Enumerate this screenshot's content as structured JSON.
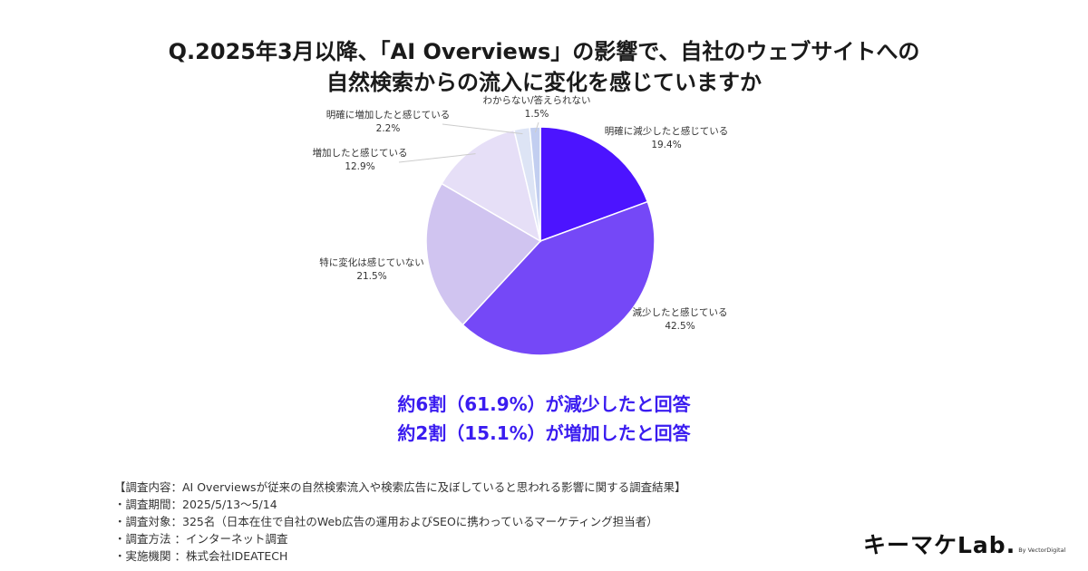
{
  "title": {
    "line1": "Q.2025年3月以降、「AI Overviews」の影響で、自社のウェブサイトへの",
    "line2": "自然検索からの流入に変化を感じていますか"
  },
  "chart_data": {
    "type": "pie",
    "slices": [
      {
        "label": "明確に減少したと感じている",
        "value": 19.4,
        "value_label": "19.4%",
        "color": "#4c14ff"
      },
      {
        "label": "減少したと感じている",
        "value": 42.5,
        "value_label": "42.5%",
        "color": "#7548f7"
      },
      {
        "label": "特に変化は感じていない",
        "value": 21.5,
        "value_label": "21.5%",
        "color": "#d0c4f0"
      },
      {
        "label": "増加したと感じている",
        "value": 12.9,
        "value_label": "12.9%",
        "color": "#e6dff7"
      },
      {
        "label": "明確に増加したと感じている",
        "value": 2.2,
        "value_label": "2.2%",
        "color": "#dde4f5"
      },
      {
        "label": "わからない/答えられない",
        "value": 1.5,
        "value_label": "1.5%",
        "color": "#c2cef0"
      }
    ],
    "start": "top",
    "direction": "clockwise",
    "legend": "none"
  },
  "summary": {
    "line1": "約6割（61.9%）が減少したと回答",
    "line2": "約2割（15.1%）が増加したと回答",
    "color": "#3a1cf0"
  },
  "notes": [
    "【調査内容：AI Overviewsが従来の自然検索流入や検索広告に及ぼしていると思われる影響に関する調査結果】",
    "・調査期間：2025/5/13〜5/14",
    "・調査対象：325名（日本在住で自社のWeb広告の運用およびSEOに携わっているマーケティング担当者）",
    "・調査方法 ：インターネット調査",
    "・実施機関 ：株式会社IDEATECH"
  ],
  "logo": {
    "main": "キーマケLab.",
    "sub": "By VectorDigital"
  }
}
